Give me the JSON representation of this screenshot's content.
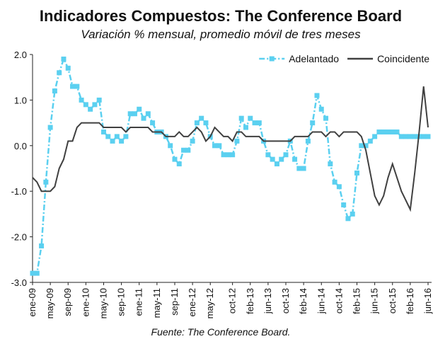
{
  "chart_data": {
    "type": "line",
    "title": "Indicadores Compuestos: The Conference Board",
    "subtitle": "Variación % mensual, promedio móvil de tres meses",
    "source": "Fuente: The Conference Board.",
    "categories": [
      "ene-09",
      null,
      null,
      null,
      "may-09",
      null,
      null,
      null,
      "sep-09",
      null,
      null,
      null,
      "ene-10",
      null,
      null,
      null,
      "may-10",
      null,
      null,
      null,
      "sep-10",
      null,
      null,
      null,
      "ene-11",
      null,
      null,
      null,
      "may-11",
      null,
      null,
      null,
      "sep-11",
      null,
      null,
      null,
      "ene-12",
      null,
      null,
      null,
      "may-12",
      null,
      null,
      null,
      null,
      "oct-12",
      null,
      null,
      null,
      "feb-13",
      null,
      null,
      null,
      "jun-13",
      null,
      null,
      null,
      "oct-13",
      null,
      null,
      null,
      "feb-14",
      null,
      null,
      null,
      "jun-14",
      null,
      null,
      null,
      "oct-14",
      null,
      null,
      null,
      "feb-15",
      null,
      null,
      null,
      "jun-15",
      null,
      null,
      null,
      "oct-15",
      null,
      null,
      null,
      "feb-16",
      null,
      null,
      null,
      "jun-16"
    ],
    "series": [
      {
        "name": "Adelantado",
        "color": "#5bd0f0",
        "values": [
          -2.8,
          -2.8,
          -2.2,
          -0.8,
          0.4,
          1.2,
          1.6,
          1.9,
          1.7,
          1.3,
          1.3,
          1.0,
          0.9,
          0.8,
          0.9,
          1.0,
          0.3,
          0.2,
          0.1,
          0.2,
          0.1,
          0.2,
          0.7,
          0.7,
          0.8,
          0.6,
          0.7,
          0.5,
          0.3,
          0.3,
          0.2,
          0.0,
          -0.3,
          -0.4,
          -0.1,
          -0.1,
          0.1,
          0.5,
          0.6,
          0.5,
          0.2,
          0.0,
          0.0,
          -0.2,
          -0.2,
          -0.2,
          0.1,
          0.6,
          0.4,
          0.6,
          0.5,
          0.5,
          0.1,
          -0.2,
          -0.3,
          -0.4,
          -0.3,
          -0.2,
          0.1,
          -0.3,
          -0.5,
          -0.5,
          0.1,
          0.5,
          1.1,
          0.8,
          0.6,
          -0.4,
          -0.8,
          -0.9,
          -1.3,
          -1.6,
          -1.5,
          -0.6,
          0.0,
          0.0,
          0.1,
          0.2,
          0.3,
          0.3,
          0.3,
          0.3,
          0.3,
          0.2,
          0.2,
          0.2,
          0.2,
          0.2,
          0.2,
          0.2
        ]
      },
      {
        "name": "Coincidente",
        "color": "#404040",
        "values": [
          -0.7,
          -0.8,
          -1.0,
          -1.0,
          -1.0,
          -0.9,
          -0.5,
          -0.3,
          0.1,
          0.1,
          0.4,
          0.5,
          0.5,
          0.5,
          0.5,
          0.5,
          0.4,
          0.4,
          0.4,
          0.4,
          0.4,
          0.3,
          0.4,
          0.4,
          0.4,
          0.4,
          0.4,
          0.3,
          0.3,
          0.3,
          0.2,
          0.2,
          0.2,
          0.3,
          0.2,
          0.2,
          0.3,
          0.4,
          0.3,
          0.1,
          0.2,
          0.4,
          0.3,
          0.2,
          0.2,
          0.1,
          0.3,
          0.3,
          0.2,
          0.2,
          0.2,
          0.2,
          0.1,
          0.1,
          0.1,
          0.1,
          0.1,
          0.1,
          0.1,
          0.2,
          0.2,
          0.2,
          0.2,
          0.3,
          0.3,
          0.3,
          0.2,
          0.3,
          0.3,
          0.2,
          0.3,
          0.3,
          0.3,
          0.3,
          0.2,
          -0.1,
          -0.6,
          -1.1,
          -1.3,
          -1.1,
          -0.7,
          -0.4,
          -0.7,
          -1.0,
          -1.2,
          -1.4,
          -0.6,
          0.3,
          1.3,
          0.4
        ]
      }
    ],
    "ylim": [
      -3.0,
      2.0
    ],
    "yticks": [
      {
        "value": 2,
        "label": "2.0"
      },
      {
        "value": 1,
        "label": "1.0"
      },
      {
        "value": 0,
        "label": "0.0"
      },
      {
        "value": -1,
        "label": "-1.0"
      },
      {
        "value": -2,
        "label": "-2.0"
      },
      {
        "value": -3,
        "label": "-3.0"
      }
    ],
    "legend": "top-right"
  }
}
